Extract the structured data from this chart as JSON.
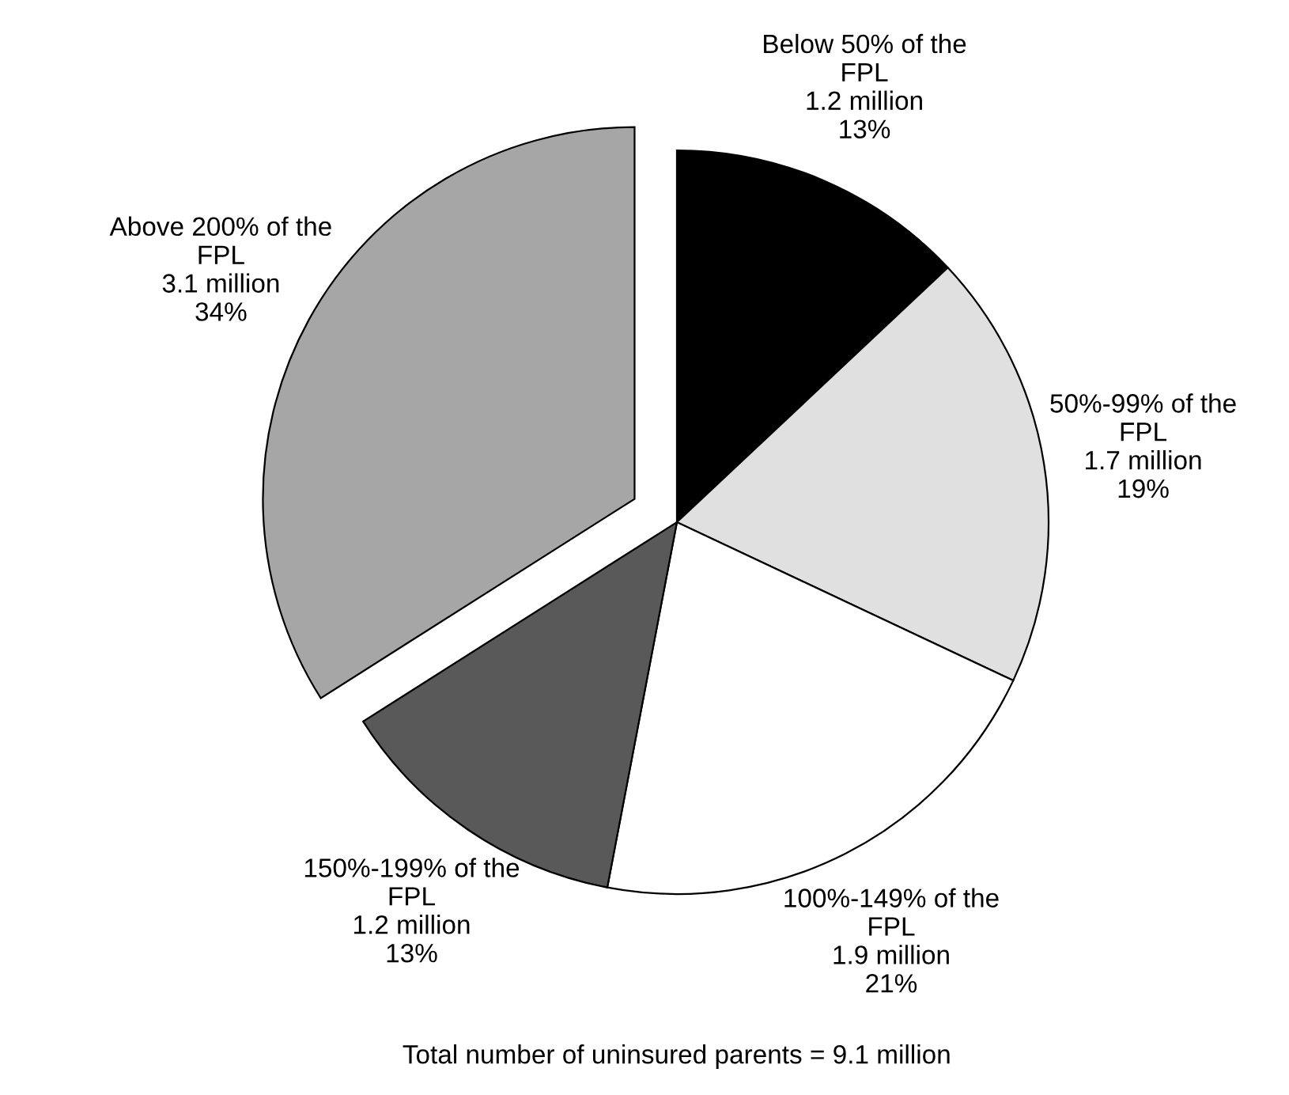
{
  "chart_data": {
    "type": "pie",
    "categories": [
      "Below 50% of the\nFPL",
      "50%-99% of the\nFPL",
      "100%-149% of the\nFPL",
      "150%-199% of the\nFPL",
      "Above 200% of the\nFPL"
    ],
    "values": [
      13,
      19,
      21,
      13,
      34
    ],
    "value_labels": [
      "1.2 million\n13%",
      "1.7 million\n19%",
      "1.9 million\n21%",
      "1.2 million\n13%",
      "3.1 million\n34%"
    ],
    "colors": [
      "#000000",
      "#e0e0e0",
      "#ffffff",
      "#595959",
      "#a6a6a6"
    ],
    "annotations": [
      "Total number of uninsured parents = 9.1 million"
    ],
    "legend": false
  }
}
